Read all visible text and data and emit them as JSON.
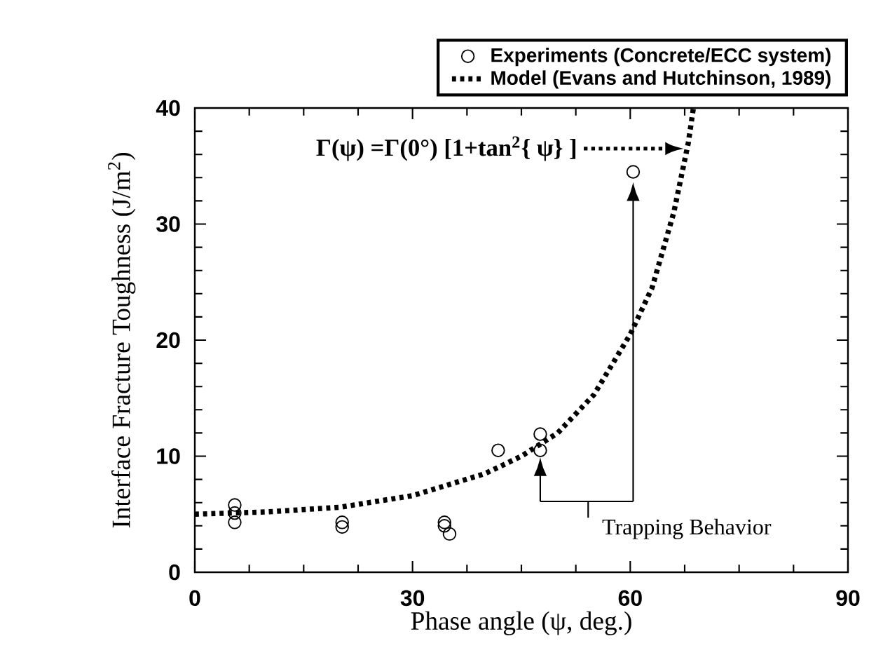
{
  "chart_data": {
    "type": "scatter",
    "xlabel": "Phase angle (ψ, deg.)",
    "ylabel": "Interface Fracture Toughness (J/m$^{2}$)",
    "xlim": [
      0,
      90
    ],
    "ylim": [
      0,
      40
    ],
    "xticks": [
      0,
      30,
      60,
      90
    ],
    "yticks": [
      0,
      10,
      20,
      30,
      40
    ],
    "legend": "top right",
    "series": [
      {
        "name": "Experiments (Concrete/ECC system)",
        "marker": "circle",
        "color": "#000000",
        "x": [
          5.5,
          5.5,
          5.5,
          20.3,
          20.3,
          34.4,
          34.4,
          35.1,
          41.8,
          47.6,
          47.6,
          60.4
        ],
        "values": [
          5.8,
          5.1,
          4.3,
          4.3,
          3.9,
          4.3,
          4.0,
          3.3,
          10.5,
          11.9,
          10.5,
          34.5
        ]
      },
      {
        "name": "Model (Evans and Hutchinson, 1989)",
        "type": "line",
        "line_style": "dotted",
        "color": "#000000",
        "x": [
          0,
          10,
          20,
          30,
          40,
          45,
          50,
          55,
          60,
          63,
          66,
          68,
          68.7
        ],
        "values": [
          5.0,
          5.2,
          5.6,
          6.6,
          8.5,
          10.0,
          12.0,
          15.3,
          20.5,
          24.5,
          31.0,
          37.0,
          40.0
        ]
      }
    ],
    "annotations": [
      "Γ(ψ) =Γ(0°)  [1+tan$^{2}${ ψ} ]",
      "Trapping Behavior"
    ]
  }
}
